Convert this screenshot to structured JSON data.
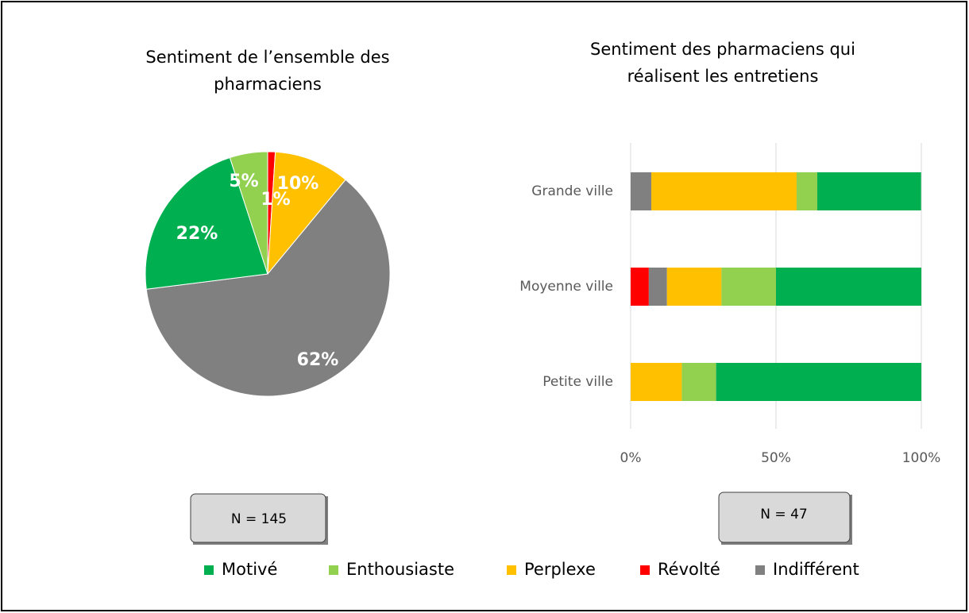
{
  "chart_data": [
    {
      "type": "pie",
      "title": [
        "Sentiment de l’ensemble des",
        "pharmaciens"
      ],
      "categories": [
        "Révolté",
        "Perplexe",
        "Indifférent",
        "Motivé",
        "Enthousiaste"
      ],
      "values": [
        1,
        10,
        62,
        22,
        5
      ],
      "value_labels": [
        "1%",
        "10%",
        "62%",
        "22%",
        "5%"
      ],
      "colors": [
        "#ff0000",
        "#ffc000",
        "#808080",
        "#00b050",
        "#92d050"
      ],
      "annotation": "N = 145"
    },
    {
      "type": "stacked_barh",
      "title": [
        "Sentiment des pharmaciens qui",
        "réalisent les entretiens"
      ],
      "categories": [
        "Grande ville",
        "Moyenne ville",
        "Petite ville"
      ],
      "series": [
        {
          "name": "Révolté",
          "color": "#ff0000",
          "values": [
            0,
            6.25,
            0
          ]
        },
        {
          "name": "Indifférent",
          "color": "#808080",
          "values": [
            7.1,
            6.25,
            0
          ]
        },
        {
          "name": "Perplexe",
          "color": "#ffc000",
          "values": [
            50,
            18.75,
            17.6
          ]
        },
        {
          "name": "Enthousiaste",
          "color": "#92d050",
          "values": [
            7.1,
            18.75,
            11.8
          ]
        },
        {
          "name": "Motivé",
          "color": "#00b050",
          "values": [
            35.7,
            50,
            70.6
          ]
        }
      ],
      "xlim": [
        0,
        100
      ],
      "xticks": [
        {
          "value": 0,
          "label": "0%"
        },
        {
          "value": 50,
          "label": "50%"
        },
        {
          "value": 100,
          "label": "100%"
        }
      ],
      "grid": true,
      "annotation": "N = 47"
    }
  ],
  "legend": {
    "position": "bottom",
    "items": [
      {
        "name": "Motivé",
        "color": "#00b050"
      },
      {
        "name": "Enthousiaste",
        "color": "#92d050"
      },
      {
        "name": "Perplexe",
        "color": "#ffc000"
      },
      {
        "name": "Révolté",
        "color": "#ff0000"
      },
      {
        "name": "Indifférent",
        "color": "#808080"
      }
    ]
  }
}
